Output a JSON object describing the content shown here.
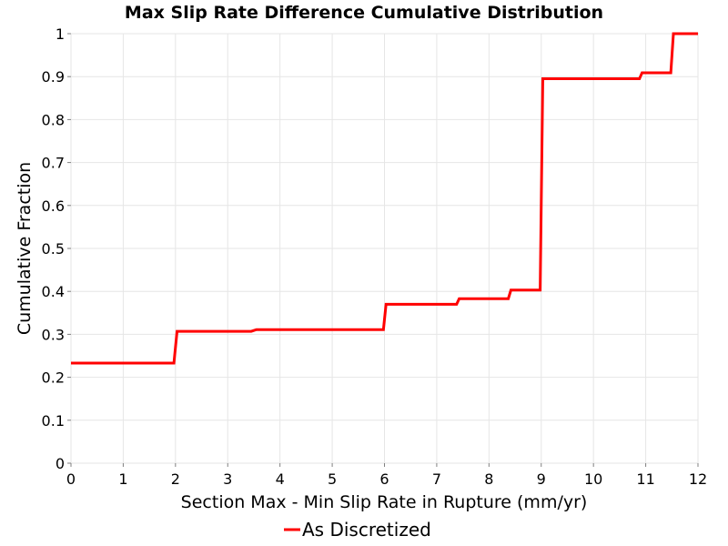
{
  "chart_data": {
    "type": "line",
    "title": "Max Slip Rate Difference Cumulative Distribution",
    "xlabel": "Section Max - Min Slip Rate in Rupture (mm/yr)",
    "ylabel": "Cumulative Fraction",
    "xlim": [
      0,
      12
    ],
    "ylim": [
      0,
      1
    ],
    "x_ticks": [
      0,
      1,
      2,
      3,
      4,
      5,
      6,
      7,
      8,
      9,
      10,
      11,
      12
    ],
    "y_ticks": [
      0,
      0.1,
      0.2,
      0.3,
      0.4,
      0.5,
      0.6,
      0.7,
      0.8,
      0.9,
      1
    ],
    "x_tick_labels": [
      "0",
      "1",
      "2",
      "3",
      "4",
      "5",
      "6",
      "7",
      "8",
      "9",
      "10",
      "11",
      "12"
    ],
    "y_tick_labels": [
      "0",
      "0.1",
      "0.2",
      "0.3",
      "0.4",
      "0.5",
      "0.6",
      "0.7",
      "0.8",
      "0.9",
      "1"
    ],
    "grid": true,
    "legend_position": "bottom-center",
    "series": [
      {
        "name": "As Discretized",
        "color": "#ff0000",
        "x": [
          0,
          1.97,
          2.03,
          3.45,
          3.55,
          5.98,
          6.03,
          7.38,
          7.43,
          8.37,
          8.42,
          8.98,
          9.03,
          10.88,
          10.93,
          11.48,
          11.53,
          12
        ],
        "y": [
          0.233,
          0.233,
          0.307,
          0.307,
          0.311,
          0.311,
          0.37,
          0.37,
          0.383,
          0.383,
          0.403,
          0.403,
          0.895,
          0.895,
          0.909,
          0.909,
          1.0,
          1.0
        ]
      }
    ]
  }
}
